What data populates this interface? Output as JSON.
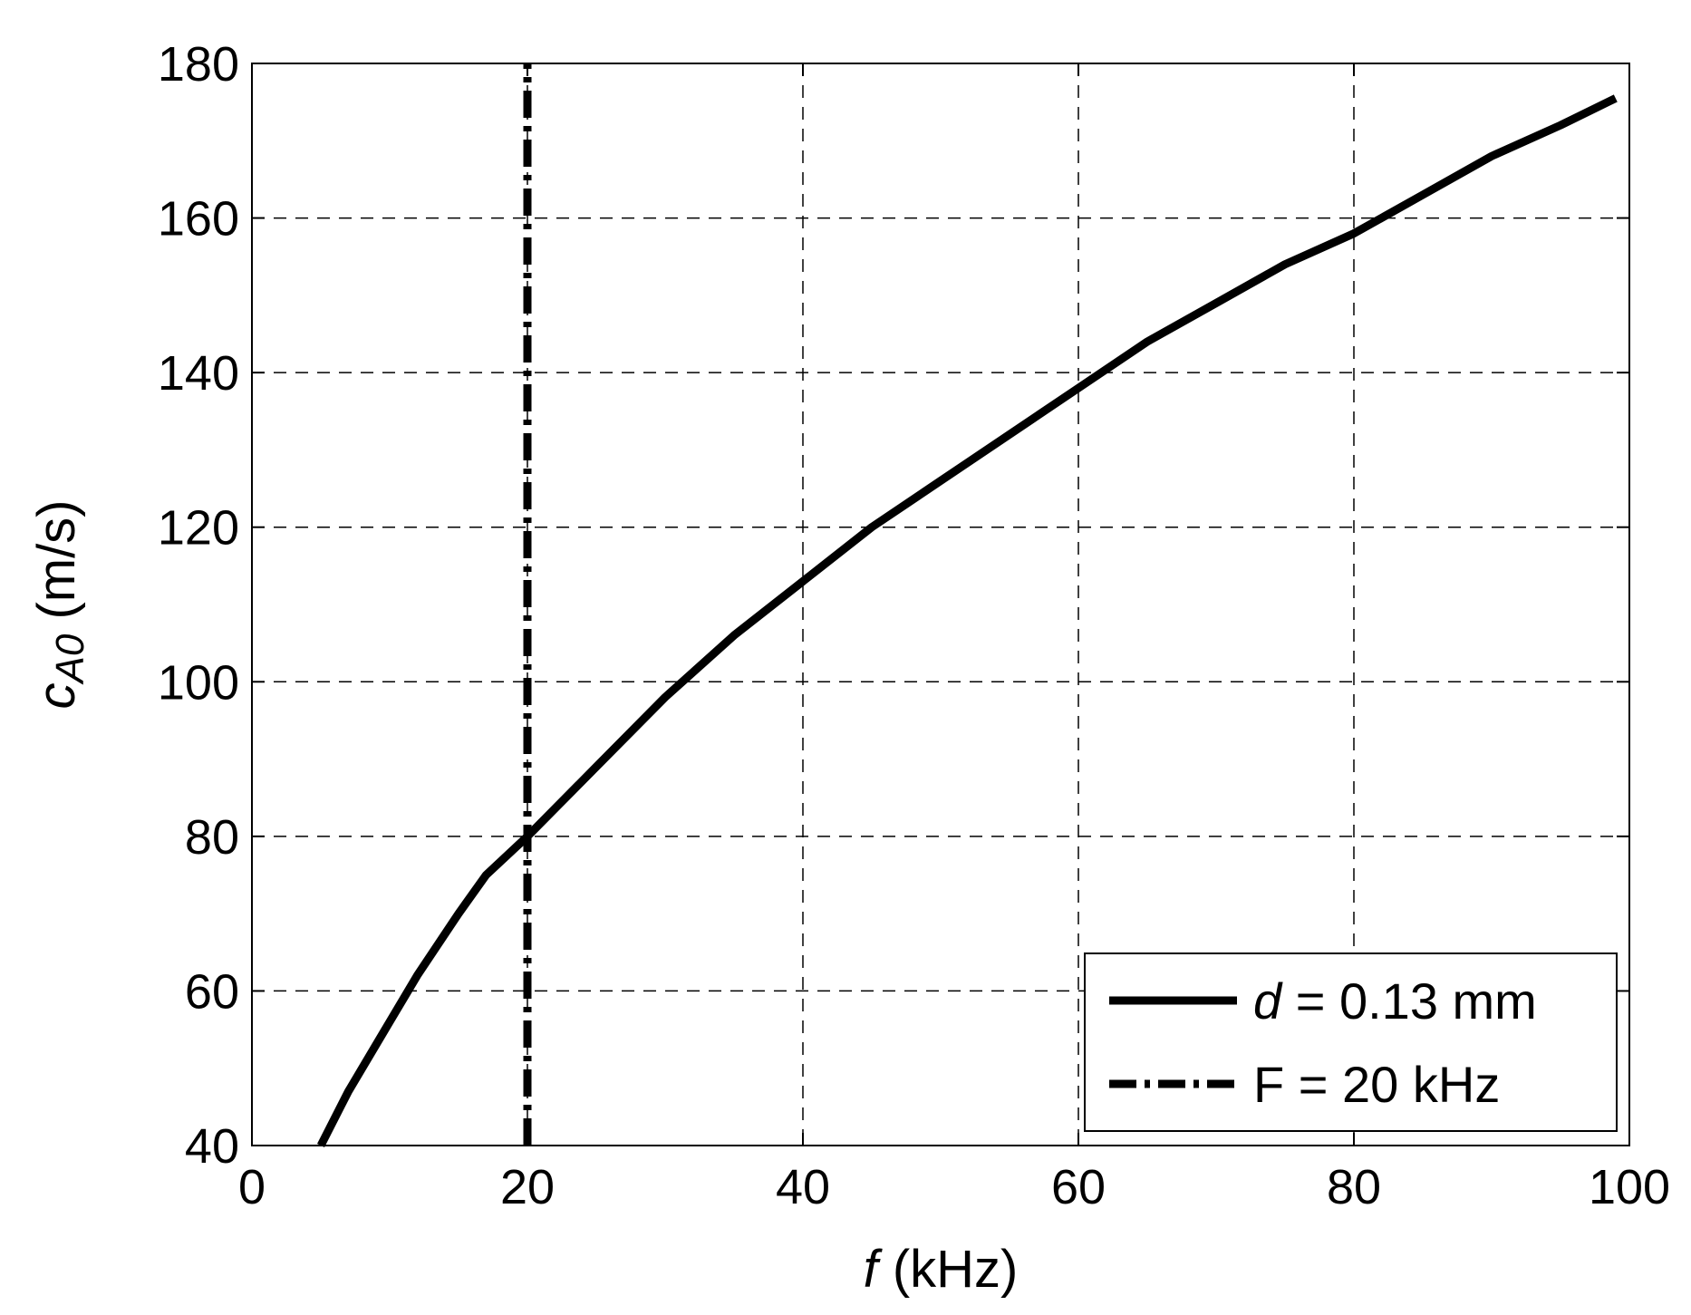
{
  "chart_data": {
    "type": "line",
    "title": "",
    "xlabel": {
      "symbol": "f",
      "unit": " (kHz)"
    },
    "ylabel": {
      "symbol": "c",
      "subscript": "A0",
      "unit": " (m/s)"
    },
    "xlim": [
      0,
      100
    ],
    "ylim": [
      40,
      180
    ],
    "x_ticks": [
      0,
      20,
      40,
      60,
      80,
      100
    ],
    "y_ticks": [
      40,
      60,
      80,
      100,
      120,
      140,
      160,
      180
    ],
    "grid": true,
    "grid_style": "dashed",
    "legend_position": "bottom-right",
    "series": [
      {
        "name": {
          "symbol": "d",
          "text": " = 0.13 mm"
        },
        "style": "solid",
        "color": "#000000",
        "x": [
          5,
          7,
          10,
          12,
          15,
          17,
          20,
          25,
          30,
          35,
          40,
          45,
          50,
          55,
          60,
          65,
          70,
          75,
          80,
          85,
          90,
          95,
          99
        ],
        "y": [
          40,
          47,
          56,
          62,
          70,
          75,
          80,
          89,
          98,
          106,
          113,
          120,
          126,
          132,
          138,
          144,
          149,
          154,
          158,
          163,
          168,
          172,
          175.5
        ]
      },
      {
        "name": {
          "symbol": "",
          "text": "F = 20 kHz"
        },
        "style": "dash-dot",
        "color": "#000000",
        "x": [
          20,
          20
        ],
        "y": [
          40,
          180
        ]
      }
    ]
  }
}
